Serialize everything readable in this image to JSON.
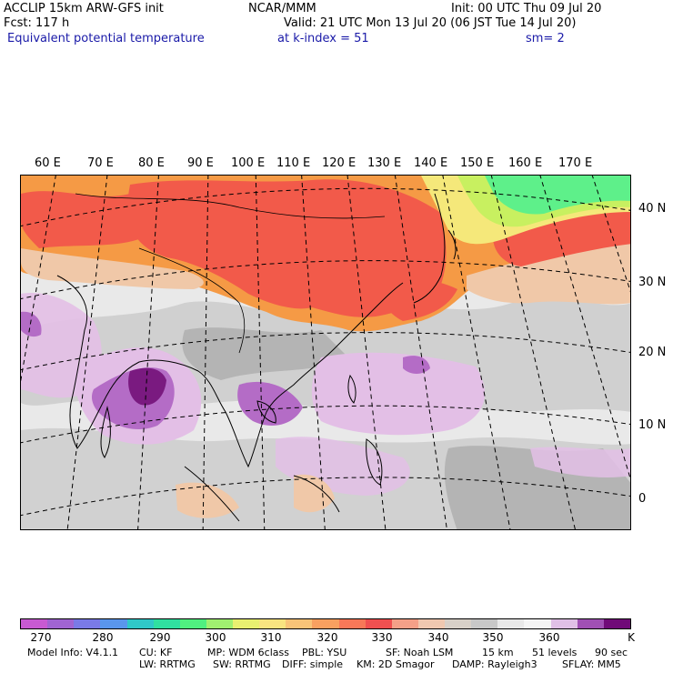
{
  "header": {
    "line1_left": "ACCLIP 15km ARW-GFS init",
    "line1_center": "NCAR/MMM",
    "line1_right": "Init: 00 UTC Thu 09 Jul 20",
    "line2_left": "Fcst:  117 h",
    "line2_right": "Valid: 21 UTC Mon 13 Jul 20 (06 JST Tue 14 Jul 20)",
    "line3_left": "Equivalent potential temperature",
    "line3_center": "at k-index =  51",
    "line3_right": "sm= 2"
  },
  "map": {
    "lon_labels": [
      "60 E",
      "70 E",
      "80 E",
      "90 E",
      "100 E",
      "110 E",
      "120 E",
      "130 E",
      "140 E",
      "150 E",
      "160 E",
      "170 E"
    ],
    "lat_labels": [
      "40 N",
      "30 N",
      "20 N",
      "10 N",
      "0"
    ],
    "colors": {
      "background": "#e9e9e9",
      "gray_dark": "#b4b4b4",
      "gray_mid": "#cdcdcd",
      "peach": "#f0c8a8",
      "salmon": "#f29c7f",
      "red": "#f25a4a",
      "orange": "#f59a45",
      "yellow": "#f5e87a",
      "lime": "#c8f060",
      "green": "#5ef08a",
      "lavender": "#e3bfe6",
      "purple": "#b46cc6",
      "dark_purple": "#7a1a80"
    }
  },
  "chart_data": {
    "type": "heatmap",
    "title": "Equivalent potential temperature",
    "colorbar": {
      "unit": "K",
      "tick_labels": [
        "270",
        "280",
        "290",
        "300",
        "310",
        "320",
        "330",
        "340",
        "350",
        "360"
      ],
      "colors": [
        "#c85ad2",
        "#a064d2",
        "#7a7ae6",
        "#5a96ec",
        "#30c8c8",
        "#30e0a0",
        "#50f080",
        "#a0f070",
        "#e8f070",
        "#f8e480",
        "#f8c478",
        "#f8a060",
        "#f87858",
        "#f05050",
        "#f4a088",
        "#f0c8b0",
        "#d8d0c8",
        "#c8c8c8",
        "#e8e8e8",
        "#f4f4f4",
        "#e0c0e6",
        "#a050b4",
        "#700a78"
      ]
    }
  },
  "footer": {
    "line1": [
      "Model Info: V4.1.1",
      "CU: KF",
      "MP: WDM 6class",
      "PBL: YSU",
      "SF: Noah LSM",
      "15 km",
      "51 levels",
      "90 sec"
    ],
    "line2": [
      "LW: RRTMG",
      "SW: RRTMG",
      "DIFF: simple",
      "KM: 2D Smagor",
      "DAMP: Rayleigh3",
      "SFLAY: MM5"
    ]
  }
}
